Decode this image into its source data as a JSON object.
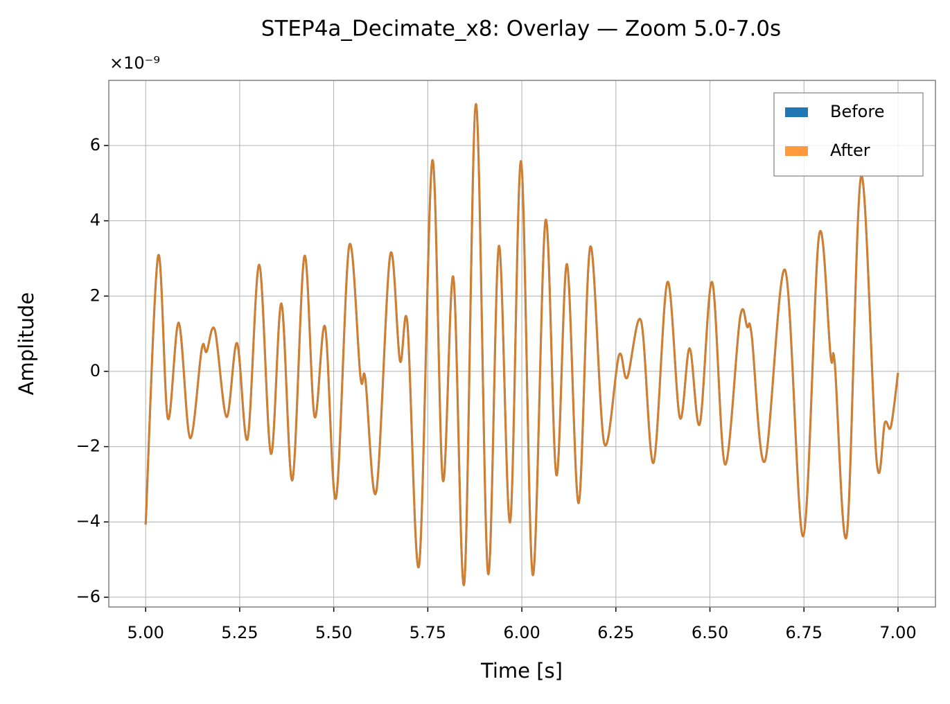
{
  "chart_data": {
    "type": "line",
    "title": "STEP4a_Decimate_x8: Overlay — Zoom 5.0-7.0s",
    "x_label": "Time [s]",
    "y_label": "Amplitude",
    "y_offset_label": "×10⁻⁹",
    "x": [
      5.0,
      5.033,
      5.059,
      5.088,
      5.118,
      5.149,
      5.162,
      5.184,
      5.215,
      5.243,
      5.271,
      5.302,
      5.333,
      5.361,
      5.39,
      5.422,
      5.449,
      5.477,
      5.506,
      5.541,
      5.571,
      5.584,
      5.613,
      5.65,
      5.676,
      5.696,
      5.727,
      5.762,
      5.79,
      5.818,
      5.847,
      5.878,
      5.91,
      5.939,
      5.969,
      5.998,
      6.029,
      6.063,
      6.092,
      6.12,
      6.151,
      6.182,
      6.219,
      6.258,
      6.28,
      6.317,
      6.35,
      6.387,
      6.42,
      6.446,
      6.473,
      6.506,
      6.54,
      6.58,
      6.599,
      6.611,
      6.646,
      6.7,
      6.748,
      6.79,
      6.821,
      6.832,
      6.864,
      6.902,
      6.943,
      6.965,
      6.981,
      7.0
    ],
    "series": [
      {
        "name": "Before",
        "color": "#1f77b4",
        "alpha": 1,
        "values": [
          -4.07,
          3.06,
          -1.25,
          1.29,
          -1.77,
          0.59,
          0.52,
          1.1,
          -1.21,
          0.75,
          -1.79,
          2.83,
          -2.19,
          1.8,
          -2.89,
          3.06,
          -1.2,
          1.18,
          -3.37,
          3.33,
          -0.15,
          -0.2,
          -3.2,
          3.09,
          0.28,
          1.25,
          -5.15,
          5.6,
          -2.89,
          2.5,
          -5.63,
          7.1,
          -5.36,
          3.33,
          -4.0,
          5.58,
          -5.41,
          4.01,
          -2.76,
          2.85,
          -3.5,
          3.31,
          -1.91,
          0.42,
          -0.17,
          1.34,
          -2.43,
          2.37,
          -1.23,
          0.61,
          -1.4,
          2.37,
          -2.47,
          1.42,
          1.18,
          0.96,
          -2.39,
          2.69,
          -4.38,
          3.61,
          0.39,
          0.2,
          -4.34,
          5.19,
          -2.37,
          -1.36,
          -1.47,
          -0.04
        ]
      },
      {
        "name": "After",
        "color": "#ff7f0e",
        "alpha": 0.8,
        "values": [
          -4.07,
          3.06,
          -1.25,
          1.29,
          -1.77,
          0.59,
          0.52,
          1.1,
          -1.21,
          0.75,
          -1.79,
          2.83,
          -2.19,
          1.8,
          -2.89,
          3.06,
          -1.2,
          1.18,
          -3.37,
          3.33,
          -0.15,
          -0.2,
          -3.2,
          3.09,
          0.28,
          1.25,
          -5.15,
          5.6,
          -2.89,
          2.5,
          -5.63,
          7.1,
          -5.36,
          3.33,
          -4.0,
          5.58,
          -5.41,
          4.01,
          -2.76,
          2.85,
          -3.5,
          3.31,
          -1.91,
          0.42,
          -0.17,
          1.34,
          -2.43,
          2.37,
          -1.23,
          0.61,
          -1.4,
          2.37,
          -2.47,
          1.42,
          1.18,
          0.96,
          -2.39,
          2.69,
          -4.38,
          3.61,
          0.39,
          0.2,
          -4.34,
          5.19,
          -2.37,
          -1.36,
          -1.47,
          -0.04
        ]
      }
    ],
    "xlim": [
      4.902,
      7.0995
    ],
    "ylim": [
      -6.26,
      7.73
    ],
    "xticks": [
      {
        "value": 5,
        "label": "5.00"
      },
      {
        "value": 5.25,
        "label": "5.25"
      },
      {
        "value": 5.5,
        "label": "5.50"
      },
      {
        "value": 5.75,
        "label": "5.75"
      },
      {
        "value": 6,
        "label": "6.00"
      },
      {
        "value": 6.25,
        "label": "6.25"
      },
      {
        "value": 6.5,
        "label": "6.50"
      },
      {
        "value": 6.75,
        "label": "6.75"
      },
      {
        "value": 7,
        "label": "7.00"
      }
    ],
    "yticks": [
      {
        "value": -6,
        "label": "−6"
      },
      {
        "value": -4,
        "label": "−4"
      },
      {
        "value": -2,
        "label": "−2"
      },
      0,
      2,
      4,
      6
    ],
    "grid": true,
    "legend": "upper right"
  }
}
